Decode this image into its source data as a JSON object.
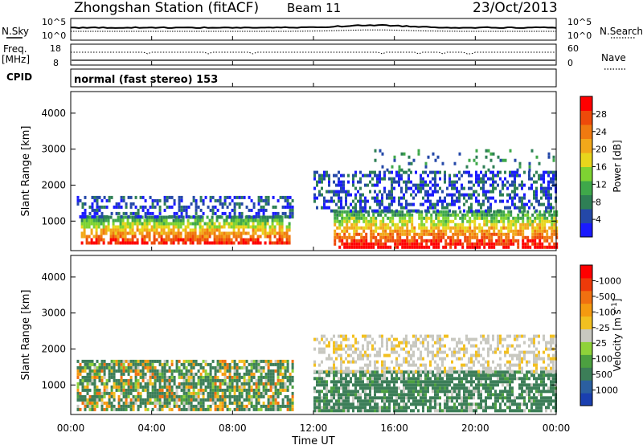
{
  "header": {
    "station": "Zhongshan Station (fitACF)",
    "beam": "Beam 11",
    "date": "23/Oct/2013"
  },
  "noise_panel": {
    "left_label": "N.Sky",
    "right_label": "N.Search",
    "left_ticks": [
      "10^5",
      "10^0"
    ],
    "right_ticks": [
      "10^5",
      "10^0"
    ]
  },
  "freq_panel": {
    "left_label_1": "Freq.",
    "left_label_2": "[MHz]",
    "right_label": "Nave",
    "left_ticks": [
      "18",
      "8"
    ],
    "right_ticks": [
      "60",
      "0"
    ]
  },
  "cpid": {
    "label": "CPID",
    "mode_text": "normal (fast stereo) 153"
  },
  "x_axis": {
    "label": "Time UT",
    "ticks": [
      "00:00",
      "04:00",
      "08:00",
      "12:00",
      "16:00",
      "20:00",
      "00:00"
    ]
  },
  "chart_data": [
    {
      "type": "heatmap",
      "title": "",
      "xlabel": "Time UT",
      "ylabel": "Slant Range [km]",
      "x_range_hours": [
        0,
        24
      ],
      "ylim": [
        180,
        4600
      ],
      "y_ticks": [
        1000,
        2000,
        3000,
        4000
      ],
      "colorbar": {
        "label": "Power [dB]",
        "tick_labels": [
          "4",
          "8",
          "12",
          "16",
          "20",
          "24",
          "28"
        ],
        "colors": [
          "#1a1aff",
          "#2448a8",
          "#2e7f55",
          "#3fa84a",
          "#7ed332",
          "#e8d61c",
          "#f2a81a",
          "#f07a10",
          "#ee4a0a",
          "#ff0000"
        ]
      },
      "echo_bands": [
        {
          "t0": 0.5,
          "t1": 10.8,
          "r0": 350,
          "r1": 1150,
          "level": "high"
        },
        {
          "t0": 13.0,
          "t1": 24.0,
          "r0": 300,
          "r1": 1300,
          "level": "high"
        },
        {
          "t0": 0.3,
          "t1": 11.0,
          "r0": 1150,
          "r1": 1700,
          "level": "low"
        },
        {
          "t0": 12.0,
          "t1": 24.0,
          "r0": 1300,
          "r1": 2400,
          "level": "low"
        },
        {
          "t0": 15.0,
          "t1": 24.0,
          "r0": 2400,
          "r1": 3000,
          "level": "sparse"
        }
      ]
    },
    {
      "type": "heatmap",
      "title": "",
      "xlabel": "Time UT",
      "ylabel": "Slant Range [km]",
      "x_range_hours": [
        0,
        24
      ],
      "ylim": [
        180,
        4600
      ],
      "y_ticks": [
        1000,
        2000,
        3000,
        4000
      ],
      "colorbar": {
        "label": "Velocity [m s^-1]",
        "tick_labels": [
          "1000",
          "500",
          "100",
          "25",
          "-25",
          "-100",
          "-500",
          "-1000"
        ],
        "colors": [
          "#1a3fb0",
          "#2b5fa0",
          "#3c7e58",
          "#4ca040",
          "#8fd23a",
          "#c8c8c0",
          "#f2c020",
          "#f59a10",
          "#f07010",
          "#ee3a0a",
          "#ff0000"
        ]
      },
      "echo_bands": [
        {
          "t0": 0.3,
          "t1": 11.0,
          "r0": 300,
          "r1": 1700,
          "level": "mixed"
        },
        {
          "t0": 12.0,
          "t1": 24.0,
          "r0": 300,
          "r1": 1400,
          "level": "positive"
        },
        {
          "t0": 12.0,
          "t1": 24.0,
          "r0": 1400,
          "r1": 2400,
          "level": "grey"
        }
      ]
    }
  ]
}
